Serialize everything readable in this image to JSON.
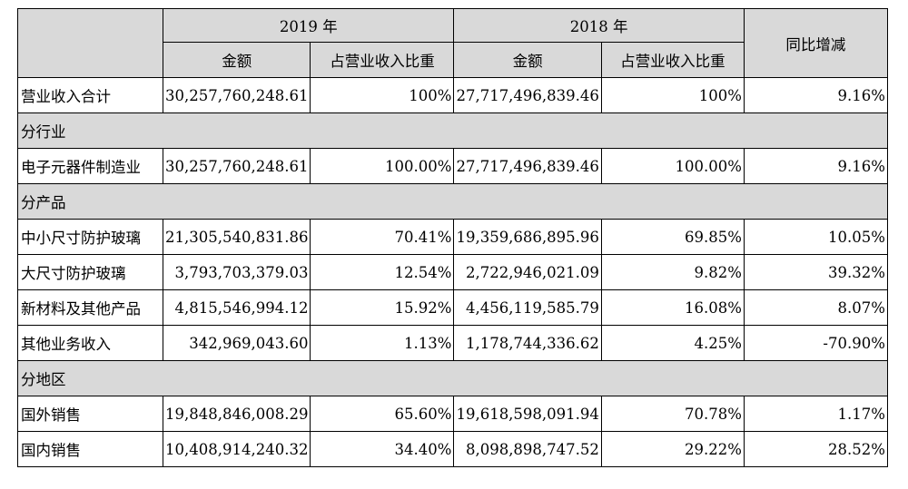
{
  "header": {
    "year_a": "2019 年",
    "year_b": "2018 年",
    "change": "同比增减",
    "amount": "金额",
    "ratio": "占营业收入比重"
  },
  "total": {
    "label": "营业收入合计",
    "amt_2019": "30,257,760,248.61",
    "pct_2019": "100%",
    "amt_2018": "27,717,496,839.46",
    "pct_2018": "100%",
    "change": "9.16%"
  },
  "section_industry": "分行业",
  "industry": {
    "label": "电子元器件制造业",
    "amt_2019": "30,257,760,248.61",
    "pct_2019": "100.00%",
    "amt_2018": "27,717,496,839.46",
    "pct_2018": "100.00%",
    "change": "9.16%"
  },
  "section_product": "分产品",
  "products": [
    {
      "label": "中小尺寸防护玻璃",
      "amt_2019": "21,305,540,831.86",
      "pct_2019": "70.41%",
      "amt_2018": "19,359,686,895.96",
      "pct_2018": "69.85%",
      "change": "10.05%"
    },
    {
      "label": "大尺寸防护玻璃",
      "amt_2019": "3,793,703,379.03",
      "pct_2019": "12.54%",
      "amt_2018": "2,722,946,021.09",
      "pct_2018": "9.82%",
      "change": "39.32%"
    },
    {
      "label": "新材料及其他产品",
      "amt_2019": "4,815,546,994.12",
      "pct_2019": "15.92%",
      "amt_2018": "4,456,119,585.79",
      "pct_2018": "16.08%",
      "change": "8.07%"
    },
    {
      "label": "其他业务收入",
      "amt_2019": "342,969,043.60",
      "pct_2019": "1.13%",
      "amt_2018": "1,178,744,336.62",
      "pct_2018": "4.25%",
      "change": "-70.90%"
    }
  ],
  "section_region": "分地区",
  "regions": [
    {
      "label": "国外销售",
      "amt_2019": "19,848,846,008.29",
      "pct_2019": "65.60%",
      "amt_2018": "19,618,598,091.94",
      "pct_2018": "70.78%",
      "change": "1.17%"
    },
    {
      "label": "国内销售",
      "amt_2019": "10,408,914,240.32",
      "pct_2019": "34.40%",
      "amt_2018": "8,098,898,747.52",
      "pct_2018": "29.22%",
      "change": "28.52%"
    }
  ]
}
